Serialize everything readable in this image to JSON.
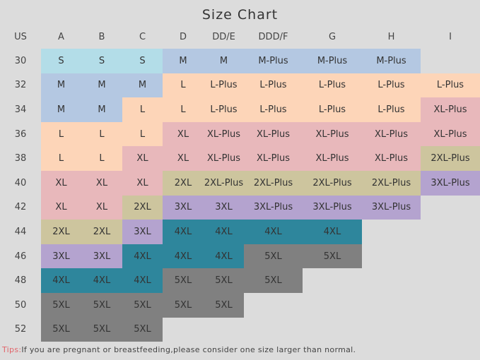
{
  "title": "Size Chart",
  "header": [
    "US",
    "A",
    "B",
    "C",
    "D",
    "DD/E",
    "DDD/F",
    "G",
    "H",
    "I"
  ],
  "rows": [
    {
      "us": "30",
      "sizes": [
        "S",
        "S",
        "S",
        "M",
        "M",
        "M-Plus",
        "M-Plus",
        "M-Plus",
        ""
      ]
    },
    {
      "us": "32",
      "sizes": [
        "M",
        "M",
        "M",
        "L",
        "L-Plus",
        "L-Plus",
        "L-Plus",
        "L-Plus",
        "L-Plus"
      ]
    },
    {
      "us": "34",
      "sizes": [
        "M",
        "M",
        "L",
        "L",
        "L-Plus",
        "L-Plus",
        "L-Plus",
        "L-Plus",
        "XL-Plus"
      ]
    },
    {
      "us": "36",
      "sizes": [
        "L",
        "L",
        "L",
        "XL",
        "XL-Plus",
        "XL-Plus",
        "XL-Plus",
        "XL-Plus",
        "XL-Plus"
      ]
    },
    {
      "us": "38",
      "sizes": [
        "L",
        "L",
        "XL",
        "XL",
        "XL-Plus",
        "XL-Plus",
        "XL-Plus",
        "XL-Plus",
        "2XL-Plus"
      ]
    },
    {
      "us": "40",
      "sizes": [
        "XL",
        "XL",
        "XL",
        "2XL",
        "2XL-Plus",
        "2XL-Plus",
        "2XL-Plus",
        "2XL-Plus",
        "3XL-Plus"
      ]
    },
    {
      "us": "42",
      "sizes": [
        "XL",
        "XL",
        "2XL",
        "3XL",
        "3XL",
        "3XL-Plus",
        "3XL-Plus",
        "3XL-Plus",
        ""
      ]
    },
    {
      "us": "44",
      "sizes": [
        "2XL",
        "2XL",
        "3XL",
        "4XL",
        "4XL",
        "4XL",
        "4XL",
        "",
        ""
      ]
    },
    {
      "us": "46",
      "sizes": [
        "3XL",
        "3XL",
        "4XL",
        "4XL",
        "4XL",
        "5XL",
        "5XL",
        "",
        ""
      ]
    },
    {
      "us": "48",
      "sizes": [
        "4XL",
        "4XL",
        "4XL",
        "5XL",
        "5XL",
        "5XL",
        "",
        "",
        ""
      ]
    },
    {
      "us": "50",
      "sizes": [
        "5XL",
        "5XL",
        "5XL",
        "5XL",
        "5XL",
        "",
        "",
        "",
        ""
      ]
    },
    {
      "us": "52",
      "sizes": [
        "5XL",
        "5XL",
        "5XL",
        "",
        "",
        "",
        "",
        "",
        ""
      ]
    }
  ],
  "size_colors": {
    "S": "#b3dde8",
    "M": "#b4c8e2",
    "L": "#fdd5b8",
    "XL": "#e8b8bb",
    "2XL": "#cdc59e",
    "3XL": "#b4a3cf",
    "4XL": "#2e869c",
    "5XL": "#808080"
  },
  "tips": {
    "label": "Tips:",
    "text": "If you are pregnant or breastfeeding,please consider one size larger than normal."
  }
}
